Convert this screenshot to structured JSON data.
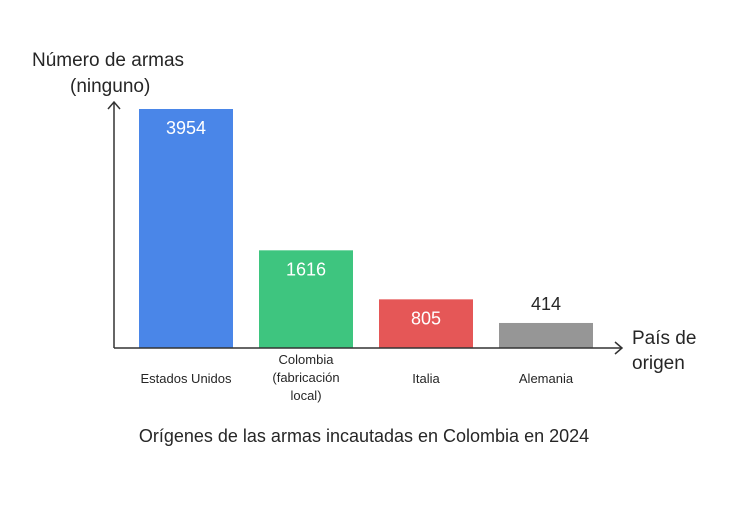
{
  "chart_data": {
    "type": "bar",
    "title": "Orígenes de las armas incautadas en Colombia en 2024",
    "ylabel": [
      "Número de armas",
      "(ninguno)"
    ],
    "xlabel": [
      "País de",
      "origen"
    ],
    "ylim": [
      0,
      4150
    ],
    "grid": false,
    "categories": [
      [
        "Estados Unidos"
      ],
      [
        "Colombia",
        "(fabricación",
        "local)"
      ],
      [
        "Italia"
      ],
      [
        "Alemania"
      ]
    ],
    "values": [
      3954,
      1616,
      805,
      414
    ],
    "value_labels": [
      "3954",
      "1616",
      "805",
      "414"
    ],
    "colors": [
      "#4a86e8",
      "#3ec57f",
      "#e55757",
      "#969696"
    ],
    "label_colors": [
      "#ffffff",
      "#ffffff",
      "#ffffff",
      "#262626"
    ],
    "axis_color": "#333333"
  }
}
